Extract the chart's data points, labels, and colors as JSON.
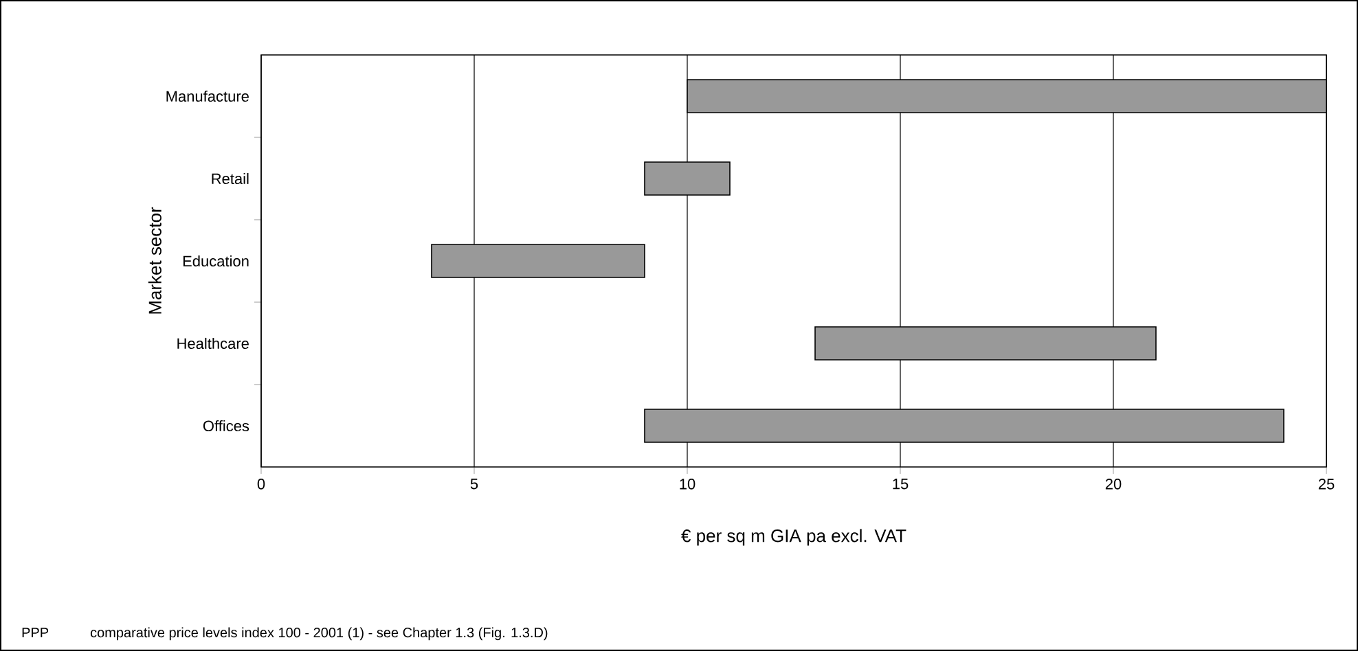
{
  "chart_data": {
    "type": "bar",
    "orientation": "horizontal",
    "categories": [
      "Manufacture",
      "Retail",
      "Education",
      "Healthcare",
      "Offices"
    ],
    "base": [
      10,
      9,
      4,
      13,
      9
    ],
    "values": [
      15,
      2,
      5,
      8,
      15
    ],
    "color": "#999999",
    "xlim": [
      0,
      25
    ],
    "xticks": [
      0,
      5,
      10,
      15,
      20,
      25
    ],
    "grid": "x",
    "xlabel": "€ per sq m GIA pa excl. VAT",
    "ylabel": "Market sector",
    "annotations": [
      "PPP",
      "comparative price levels index 100 - 2001 (1) - see Chapter 1.3 (Fig. 1.3.D)"
    ]
  }
}
